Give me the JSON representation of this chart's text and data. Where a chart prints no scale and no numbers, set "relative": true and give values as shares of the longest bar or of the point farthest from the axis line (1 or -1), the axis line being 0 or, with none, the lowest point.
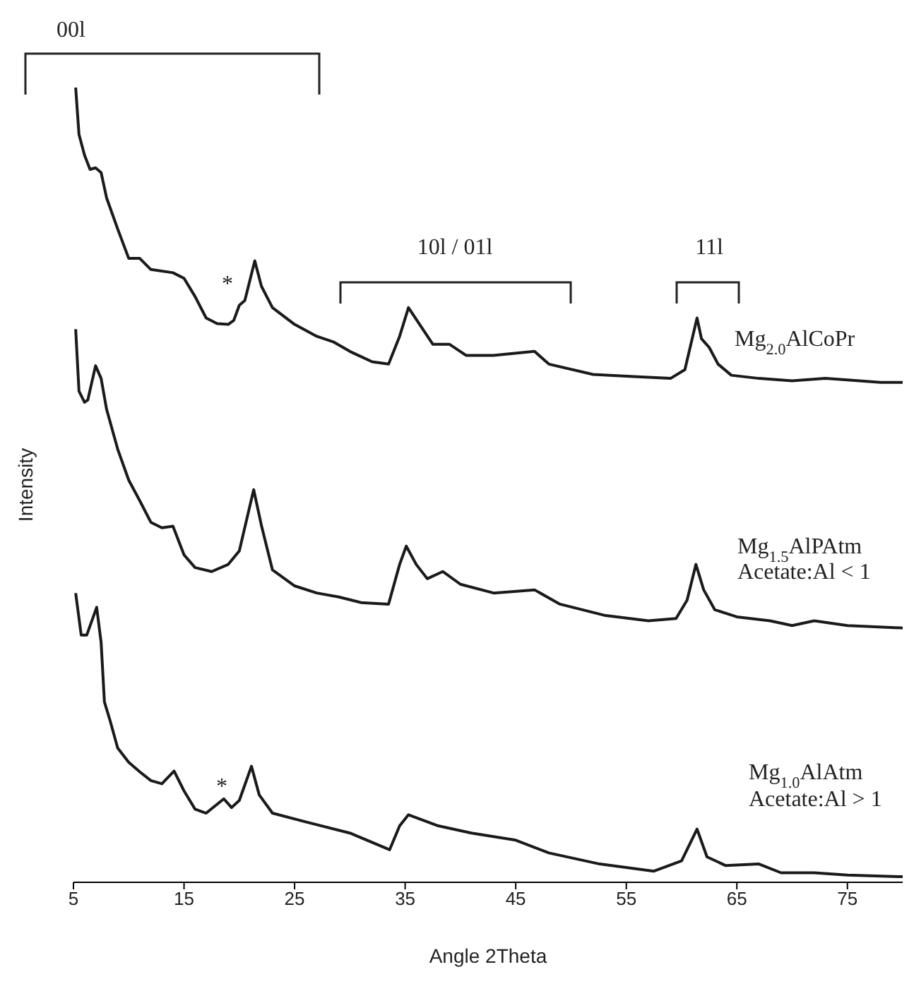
{
  "chart_data": {
    "type": "line",
    "xlabel": "Angle 2Theta",
    "ylabel": "Intensity",
    "relative": true,
    "xlim": [
      5,
      80
    ],
    "xticks": [
      5,
      15,
      25,
      35,
      45,
      55,
      65,
      75
    ],
    "series": [
      {
        "name": "Mg$_{2.0}$AlCoPr",
        "color": "#1a1a1a",
        "x": [
          5.2,
          5.5,
          6,
          6.5,
          7,
          7.5,
          8,
          9,
          10,
          11,
          12,
          14,
          15,
          16,
          17,
          18,
          19,
          19.5,
          20,
          20.5,
          21.4,
          22,
          23,
          25,
          27,
          28.5,
          30,
          32,
          33.5,
          34.5,
          35.3,
          36.5,
          37.5,
          39,
          40.5,
          43,
          46.7,
          48,
          52,
          56,
          59,
          60.3,
          61.4,
          61.8,
          62.5,
          63.3,
          64.5,
          67,
          70,
          73,
          75,
          78,
          80
        ],
        "values": [
          1.0,
          0.941,
          0.915,
          0.897,
          0.899,
          0.893,
          0.861,
          0.822,
          0.785,
          0.785,
          0.771,
          0.767,
          0.76,
          0.737,
          0.71,
          0.703,
          0.702,
          0.707,
          0.726,
          0.732,
          0.782,
          0.75,
          0.723,
          0.702,
          0.687,
          0.68,
          0.668,
          0.655,
          0.652,
          0.687,
          0.723,
          0.698,
          0.677,
          0.677,
          0.663,
          0.663,
          0.668,
          0.652,
          0.639,
          0.636,
          0.634,
          0.645,
          0.71,
          0.684,
          0.673,
          0.652,
          0.638,
          0.634,
          0.631,
          0.634,
          0.632,
          0.629,
          0.629
        ]
      },
      {
        "name": "Mg$_{1.5}$AlPAtm",
        "color": "#1a1a1a",
        "x": [
          5.2,
          5.5,
          6,
          6.3,
          7,
          7.5,
          8,
          9,
          10,
          11,
          12,
          13,
          14,
          15,
          16,
          17.5,
          19,
          20,
          21.3,
          22,
          23,
          25,
          27,
          29,
          31,
          33.5,
          34.5,
          35.1,
          36,
          37,
          38.4,
          40,
          43,
          46.7,
          49,
          53,
          57,
          59.5,
          60.5,
          61.3,
          62,
          63,
          65,
          68,
          70,
          72,
          75,
          80
        ],
        "values": [
          0.696,
          0.618,
          0.604,
          0.607,
          0.65,
          0.634,
          0.595,
          0.545,
          0.506,
          0.48,
          0.453,
          0.446,
          0.448,
          0.412,
          0.396,
          0.391,
          0.4,
          0.417,
          0.494,
          0.449,
          0.393,
          0.373,
          0.364,
          0.359,
          0.352,
          0.35,
          0.4,
          0.423,
          0.4,
          0.382,
          0.391,
          0.375,
          0.364,
          0.368,
          0.35,
          0.336,
          0.329,
          0.332,
          0.355,
          0.4,
          0.368,
          0.343,
          0.334,
          0.329,
          0.323,
          0.329,
          0.323,
          0.32
        ]
      },
      {
        "name": "Mg$_{1.0}$AlAtm",
        "color": "#1a1a1a",
        "x": [
          5.2,
          5.7,
          6.2,
          7.1,
          7.5,
          7.8,
          8.3,
          9,
          10,
          11,
          12,
          13,
          14.1,
          15,
          16,
          17,
          18.6,
          19.3,
          20,
          21.1,
          21.8,
          23,
          26,
          30,
          33.6,
          34.5,
          35.3,
          38,
          41,
          45,
          48,
          52.6,
          57.5,
          60,
          61.4,
          62.3,
          64,
          67,
          69,
          72,
          75,
          80
        ],
        "values": [
          0.364,
          0.311,
          0.311,
          0.346,
          0.302,
          0.227,
          0.204,
          0.169,
          0.151,
          0.139,
          0.128,
          0.124,
          0.14,
          0.115,
          0.092,
          0.087,
          0.105,
          0.094,
          0.103,
          0.146,
          0.11,
          0.087,
          0.076,
          0.062,
          0.041,
          0.071,
          0.085,
          0.071,
          0.062,
          0.053,
          0.037,
          0.023,
          0.014,
          0.027,
          0.067,
          0.032,
          0.021,
          0.023,
          0.012,
          0.012,
          0.009,
          0.007
        ]
      }
    ],
    "annotations": [
      "00l",
      "10l / 01l",
      "11l",
      "*",
      "*",
      "Acetate:Al < 1",
      "Acetate:Al > 1"
    ]
  }
}
